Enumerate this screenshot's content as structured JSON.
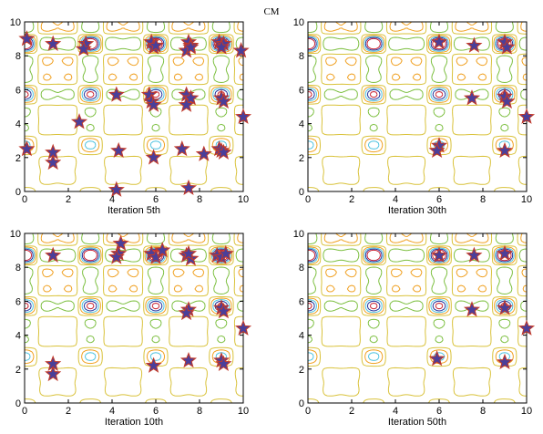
{
  "figure_title": "CM",
  "colors": {
    "marker_fill": "#4a3f9a",
    "marker_edge": "#c0392b",
    "contour_levels": [
      "#7cbf3f",
      "#d9c23a",
      "#f0a020",
      "#4fc3e0",
      "#1f2f9a",
      "#c81e2e"
    ],
    "axes": "#000000"
  },
  "chart_data": [
    {
      "type": "scatter",
      "title": "",
      "xlabel": "Iteration 5th",
      "xlim": [
        0,
        10
      ],
      "ylim": [
        0,
        10
      ],
      "xticks": [
        0,
        2,
        4,
        6,
        8,
        10
      ],
      "yticks": [
        0,
        2,
        4,
        6,
        8,
        10
      ],
      "background": "contour",
      "points": [
        [
          0.1,
          9.0
        ],
        [
          1.3,
          8.7
        ],
        [
          2.8,
          8.7
        ],
        [
          2.7,
          8.4
        ],
        [
          5.8,
          8.8
        ],
        [
          5.9,
          8.5
        ],
        [
          6.0,
          8.6
        ],
        [
          7.5,
          8.8
        ],
        [
          7.6,
          8.6
        ],
        [
          7.4,
          8.3
        ],
        [
          7.6,
          8.5
        ],
        [
          8.9,
          8.8
        ],
        [
          9.1,
          8.7
        ],
        [
          9.0,
          8.5
        ],
        [
          9.9,
          8.3
        ],
        [
          4.2,
          5.7
        ],
        [
          5.7,
          5.7
        ],
        [
          5.8,
          5.3
        ],
        [
          5.9,
          5.1
        ],
        [
          7.4,
          5.7
        ],
        [
          7.6,
          5.5
        ],
        [
          7.4,
          5.1
        ],
        [
          9.0,
          5.5
        ],
        [
          9.1,
          5.3
        ],
        [
          10.0,
          4.4
        ],
        [
          2.5,
          4.1
        ],
        [
          0.1,
          2.5
        ],
        [
          1.3,
          2.3
        ],
        [
          1.3,
          1.7
        ],
        [
          4.3,
          2.4
        ],
        [
          5.9,
          2.0
        ],
        [
          7.2,
          2.5
        ],
        [
          8.2,
          2.2
        ],
        [
          8.9,
          2.5
        ],
        [
          9.0,
          2.4
        ],
        [
          9.1,
          2.3
        ],
        [
          4.2,
          0.1
        ],
        [
          7.5,
          0.2
        ]
      ]
    },
    {
      "type": "scatter",
      "title": "",
      "xlabel": "Iteration 30th",
      "xlim": [
        0,
        10
      ],
      "ylim": [
        0,
        10
      ],
      "xticks": [
        0,
        2,
        4,
        6,
        8,
        10
      ],
      "yticks": [
        0,
        2,
        4,
        6,
        8,
        10
      ],
      "background": "contour",
      "points": [
        [
          6.0,
          8.8
        ],
        [
          7.6,
          8.6
        ],
        [
          9.0,
          8.8
        ],
        [
          9.1,
          8.5
        ],
        [
          7.5,
          5.5
        ],
        [
          9.0,
          5.6
        ],
        [
          9.1,
          5.3
        ],
        [
          10.0,
          4.4
        ],
        [
          6.0,
          2.7
        ],
        [
          5.9,
          2.4
        ],
        [
          9.0,
          2.4
        ]
      ]
    },
    {
      "type": "scatter",
      "title": "",
      "xlabel": "Iteration 10th",
      "xlim": [
        0,
        10
      ],
      "ylim": [
        0,
        10
      ],
      "xticks": [
        0,
        2,
        4,
        6,
        8,
        10
      ],
      "yticks": [
        0,
        2,
        4,
        6,
        8,
        10
      ],
      "background": "contour",
      "points": [
        [
          1.3,
          8.7
        ],
        [
          4.4,
          9.4
        ],
        [
          4.3,
          8.8
        ],
        [
          4.2,
          8.6
        ],
        [
          5.8,
          8.8
        ],
        [
          6.0,
          8.6
        ],
        [
          6.3,
          9.0
        ],
        [
          7.4,
          8.7
        ],
        [
          7.6,
          8.5
        ],
        [
          7.5,
          8.8
        ],
        [
          8.8,
          8.7
        ],
        [
          9.0,
          8.6
        ],
        [
          9.2,
          8.8
        ],
        [
          7.5,
          5.5
        ],
        [
          7.4,
          5.3
        ],
        [
          9.0,
          5.6
        ],
        [
          9.1,
          5.4
        ],
        [
          10.0,
          4.4
        ],
        [
          1.3,
          2.3
        ],
        [
          1.3,
          1.7
        ],
        [
          5.9,
          2.2
        ],
        [
          7.5,
          2.5
        ],
        [
          9.0,
          2.5
        ],
        [
          9.1,
          2.3
        ]
      ]
    },
    {
      "type": "scatter",
      "title": "",
      "xlabel": "Iteration 50th",
      "xlim": [
        0,
        10
      ],
      "ylim": [
        0,
        10
      ],
      "xticks": [
        0,
        2,
        4,
        6,
        8,
        10
      ],
      "yticks": [
        0,
        2,
        4,
        6,
        8,
        10
      ],
      "background": "contour",
      "points": [
        [
          6.0,
          8.7
        ],
        [
          7.6,
          8.7
        ],
        [
          9.0,
          8.8
        ],
        [
          7.5,
          5.5
        ],
        [
          9.0,
          5.6
        ],
        [
          10.0,
          4.4
        ],
        [
          5.9,
          2.6
        ],
        [
          9.0,
          2.4
        ]
      ]
    }
  ]
}
